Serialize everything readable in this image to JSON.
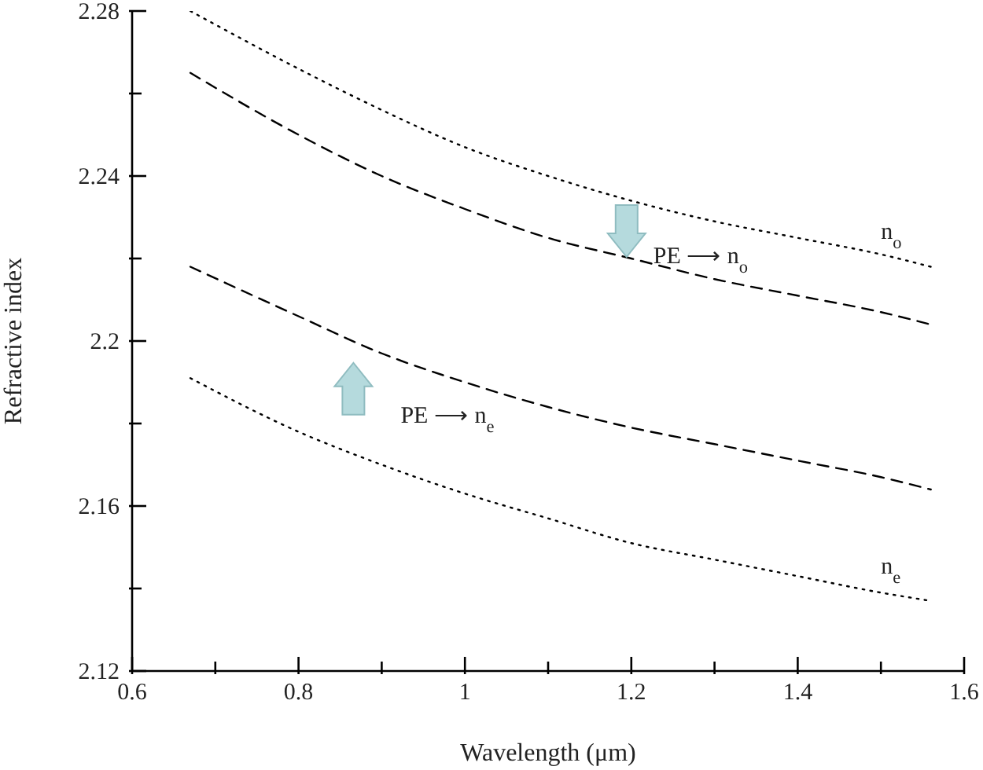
{
  "chart_data": {
    "type": "line",
    "xlabel": "Wavelength (μm)",
    "ylabel": "Refractive index",
    "x": [
      0.67,
      0.8,
      0.9,
      1.0,
      1.1,
      1.2,
      1.3,
      1.4,
      1.5,
      1.56
    ],
    "series": [
      {
        "name": "n$_{o}$",
        "color": "#000000",
        "line_style": "dotted",
        "values": [
          2.28,
          2.266,
          2.256,
          2.247,
          2.24,
          2.234,
          2.229,
          2.225,
          2.221,
          2.218
        ]
      },
      {
        "name": "PE ⟶ n$_{o}$",
        "color": "#000000",
        "line_style": "dashed",
        "values": [
          2.265,
          2.25,
          2.24,
          2.232,
          2.225,
          2.22,
          2.215,
          2.211,
          2.207,
          2.204
        ]
      },
      {
        "name": "PE ⟶ n$_{e}$",
        "color": "#000000",
        "line_style": "dashed",
        "values": [
          2.218,
          2.206,
          2.197,
          2.19,
          2.184,
          2.179,
          2.175,
          2.171,
          2.167,
          2.164
        ]
      },
      {
        "name": "n$_{e}$",
        "color": "#000000",
        "line_style": "dotted",
        "values": [
          2.191,
          2.178,
          2.17,
          2.163,
          2.157,
          2.151,
          2.147,
          2.143,
          2.139,
          2.137
        ]
      }
    ],
    "xlim": [
      0.6,
      1.6
    ],
    "xticks": [
      0.6,
      {
        "value": 0.7,
        "label": null
      },
      0.8,
      {
        "value": 0.9,
        "label": null
      },
      1,
      {
        "value": 1.1,
        "label": null
      },
      1.2,
      {
        "value": 1.3,
        "label": null
      },
      1.4,
      {
        "value": 1.5,
        "label": null
      },
      1.6
    ],
    "ylim": [
      2.12,
      2.28
    ],
    "yticks": [
      2.12,
      {
        "value": 2.14,
        "label": null
      },
      2.16,
      {
        "value": 2.18,
        "label": null
      },
      2.2,
      {
        "value": 2.22,
        "label": null
      },
      2.24,
      {
        "value": 2.26,
        "label": null
      },
      2.28
    ],
    "grid": false,
    "legend": false,
    "marker": "none"
  }
}
